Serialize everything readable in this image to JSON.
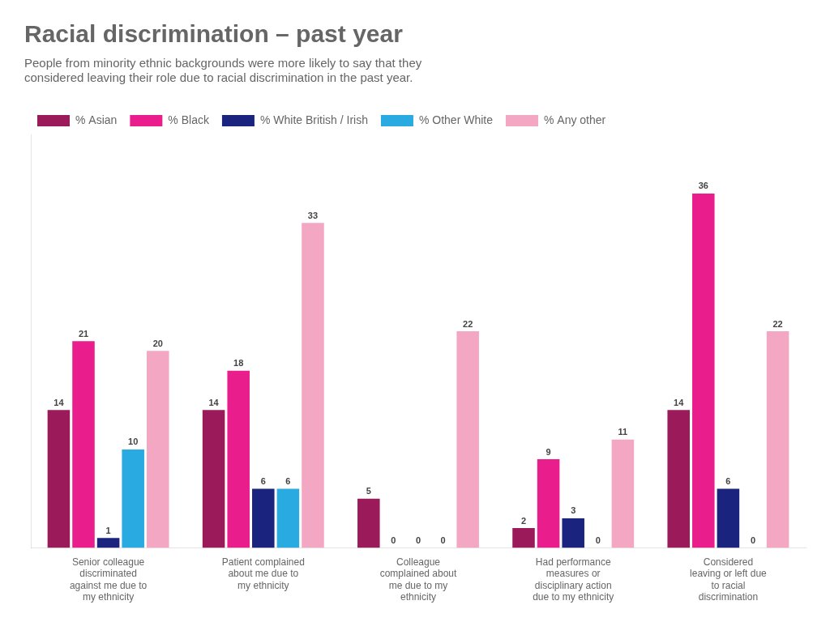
{
  "chart_data": {
    "type": "bar",
    "title": "Racial discrimination – past year",
    "subtitle": "People from minority ethnic backgrounds were more likely to say that they\nconsidered leaving their role due to racial discrimination in the past year.",
    "categories": [
      "Senior colleague\ndiscriminated\nagainst me due to\nmy ethnicity",
      "Patient complained\nabout me due to\nmy ethnicity",
      "Colleague\ncomplained about\nme due to my\nethnicity",
      "Had performance\nmeasures or\ndisciplinary action\ndue to my ethnicity",
      "Considered\nleaving or left due\nto racial\ndiscrimination"
    ],
    "series": [
      {
        "name": "% Asian",
        "color": "#9b1a5a",
        "values": [
          14,
          14,
          5,
          2,
          14
        ]
      },
      {
        "name": "% Black",
        "color": "#e91e8c",
        "values": [
          21,
          18,
          0,
          9,
          36
        ]
      },
      {
        "name": "% White British / Irish",
        "color": "#1a237e",
        "values": [
          1,
          6,
          0,
          3,
          6
        ]
      },
      {
        "name": "% Other White",
        "color": "#29abe2",
        "values": [
          10,
          6,
          0,
          0,
          0
        ]
      },
      {
        "name": "% Any other",
        "color": "#f4a7c3",
        "values": [
          20,
          33,
          22,
          11,
          22
        ]
      }
    ],
    "ylim": [
      0,
      42
    ],
    "grid": false,
    "legend": "top",
    "data_labels": true,
    "tick_labels": "x"
  }
}
